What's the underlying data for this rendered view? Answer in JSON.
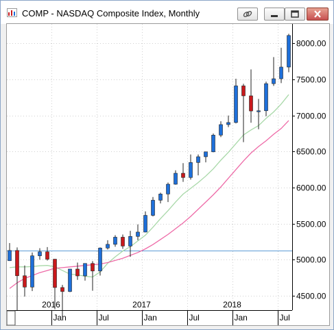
{
  "window": {
    "title": "COMP - NASDAQ Composite Index, Monthly",
    "controls": [
      "link-icon",
      "minimize-icon",
      "maximize-icon",
      "close-icon"
    ]
  },
  "colors": {
    "up_candle": "#1e6fd9",
    "down_candle": "#c8191c",
    "ma_short": "#a8d8a8",
    "ma_long": "#ee6aa7",
    "ref_line": "#5b9bd5"
  },
  "chart_data": {
    "type": "candlestick",
    "interval": "monthly",
    "y_axis": {
      "position": "right",
      "ticks": [
        4500,
        5000,
        5500,
        6000,
        6500,
        7000,
        7500,
        8000
      ],
      "tick_labels": [
        "4500.00",
        "5000.00",
        "5500.00",
        "6000.00",
        "6500.00",
        "7000.00",
        "7500.00",
        "8000.00"
      ],
      "ylim": [
        4300,
        8270
      ]
    },
    "x_axis": {
      "month_labels": [
        {
          "label": "Jan",
          "date": "2016-01"
        },
        {
          "label": "Jul",
          "date": "2016-07"
        },
        {
          "label": "Jan",
          "date": "2017-01"
        },
        {
          "label": "Jul",
          "date": "2017-07"
        },
        {
          "label": "Jan",
          "date": "2018-01"
        },
        {
          "label": "Jul",
          "date": "2018-07"
        }
      ],
      "year_labels": [
        {
          "label": "2016",
          "date": "2016-01"
        },
        {
          "label": "2017",
          "date": "2017-01"
        },
        {
          "label": "2018",
          "date": "2018-01"
        }
      ]
    },
    "reference_line": {
      "value": 5130
    },
    "candles": [
      {
        "date": "2015-07",
        "open": 4986,
        "high": 5231,
        "low": 4983,
        "close": 5128
      },
      {
        "date": "2015-08",
        "open": 5128,
        "high": 5170,
        "low": 4292,
        "close": 4777
      },
      {
        "date": "2015-09",
        "open": 4777,
        "high": 4920,
        "low": 4487,
        "close": 4620
      },
      {
        "date": "2015-10",
        "open": 4620,
        "high": 5100,
        "low": 4565,
        "close": 5054
      },
      {
        "date": "2015-11",
        "open": 5054,
        "high": 5160,
        "low": 5000,
        "close": 5109
      },
      {
        "date": "2015-12",
        "open": 5109,
        "high": 5175,
        "low": 4987,
        "close": 5007
      },
      {
        "date": "2016-01",
        "open": 5007,
        "high": 5010,
        "low": 4313,
        "close": 4614
      },
      {
        "date": "2016-02",
        "open": 4614,
        "high": 4650,
        "low": 4210,
        "close": 4558
      },
      {
        "date": "2016-03",
        "open": 4558,
        "high": 4870,
        "low": 4550,
        "close": 4870
      },
      {
        "date": "2016-04",
        "open": 4870,
        "high": 4960,
        "low": 4720,
        "close": 4775
      },
      {
        "date": "2016-05",
        "open": 4775,
        "high": 4950,
        "low": 4710,
        "close": 4948
      },
      {
        "date": "2016-06",
        "open": 4948,
        "high": 4980,
        "low": 4570,
        "close": 4843
      },
      {
        "date": "2016-07",
        "open": 4843,
        "high": 5170,
        "low": 4780,
        "close": 5162
      },
      {
        "date": "2016-08",
        "open": 5162,
        "high": 5270,
        "low": 5140,
        "close": 5213
      },
      {
        "date": "2016-09",
        "open": 5213,
        "high": 5340,
        "low": 5180,
        "close": 5312
      },
      {
        "date": "2016-10",
        "open": 5312,
        "high": 5350,
        "low": 5150,
        "close": 5189
      },
      {
        "date": "2016-11",
        "open": 5189,
        "high": 5400,
        "low": 5040,
        "close": 5323
      },
      {
        "date": "2016-12",
        "open": 5323,
        "high": 5490,
        "low": 5270,
        "close": 5383
      },
      {
        "date": "2017-01",
        "open": 5383,
        "high": 5670,
        "low": 5380,
        "close": 5615
      },
      {
        "date": "2017-02",
        "open": 5615,
        "high": 5870,
        "low": 5600,
        "close": 5825
      },
      {
        "date": "2017-03",
        "open": 5825,
        "high": 5930,
        "low": 5780,
        "close": 5911
      },
      {
        "date": "2017-04",
        "open": 5911,
        "high": 6070,
        "low": 5800,
        "close": 6047
      },
      {
        "date": "2017-05",
        "open": 6047,
        "high": 6240,
        "low": 6040,
        "close": 6199
      },
      {
        "date": "2017-06",
        "open": 6199,
        "high": 6340,
        "low": 6080,
        "close": 6140
      },
      {
        "date": "2017-07",
        "open": 6140,
        "high": 6460,
        "low": 6110,
        "close": 6348
      },
      {
        "date": "2017-08",
        "open": 6348,
        "high": 6460,
        "low": 6170,
        "close": 6428
      },
      {
        "date": "2017-09",
        "open": 6428,
        "high": 6500,
        "low": 6350,
        "close": 6496
      },
      {
        "date": "2017-10",
        "open": 6496,
        "high": 6750,
        "low": 6490,
        "close": 6728
      },
      {
        "date": "2017-11",
        "open": 6728,
        "high": 6920,
        "low": 6700,
        "close": 6874
      },
      {
        "date": "2017-12",
        "open": 6874,
        "high": 7000,
        "low": 6840,
        "close": 6903
      },
      {
        "date": "2018-01",
        "open": 6903,
        "high": 7510,
        "low": 6890,
        "close": 7411
      },
      {
        "date": "2018-02",
        "open": 7411,
        "high": 7440,
        "low": 6630,
        "close": 7273
      },
      {
        "date": "2018-03",
        "open": 7273,
        "high": 7640,
        "low": 6900,
        "close": 7063
      },
      {
        "date": "2018-04",
        "open": 7063,
        "high": 7230,
        "low": 6810,
        "close": 7066
      },
      {
        "date": "2018-05",
        "open": 7066,
        "high": 7470,
        "low": 6990,
        "close": 7442
      },
      {
        "date": "2018-06",
        "open": 7442,
        "high": 7810,
        "low": 7410,
        "close": 7510
      },
      {
        "date": "2018-07",
        "open": 7510,
        "high": 7940,
        "low": 7450,
        "close": 7672
      },
      {
        "date": "2018-08",
        "open": 7672,
        "high": 8133,
        "low": 7600,
        "close": 8110
      }
    ],
    "moving_averages": [
      {
        "id": "ma_short",
        "values": [
          4890,
          4900,
          4900,
          4905,
          4915,
          4920,
          4900,
          4850,
          4800,
          4790,
          4770,
          4760,
          4830,
          4950,
          5040,
          5120,
          5180,
          5260,
          5340,
          5450,
          5570,
          5680,
          5800,
          5910,
          5990,
          6070,
          6160,
          6260,
          6380,
          6490,
          6610,
          6730,
          6800,
          6860,
          6960,
          7050,
          7160,
          7290
        ]
      },
      {
        "id": "ma_long",
        "values": [
          4600,
          4680,
          4740,
          4780,
          4820,
          4850,
          4880,
          4890,
          4900,
          4910,
          4920,
          4930,
          4940,
          4960,
          4990,
          5020,
          5060,
          5100,
          5150,
          5210,
          5280,
          5350,
          5430,
          5510,
          5600,
          5700,
          5800,
          5900,
          6010,
          6130,
          6250,
          6370,
          6480,
          6570,
          6650,
          6740,
          6820,
          6930
        ]
      }
    ]
  }
}
